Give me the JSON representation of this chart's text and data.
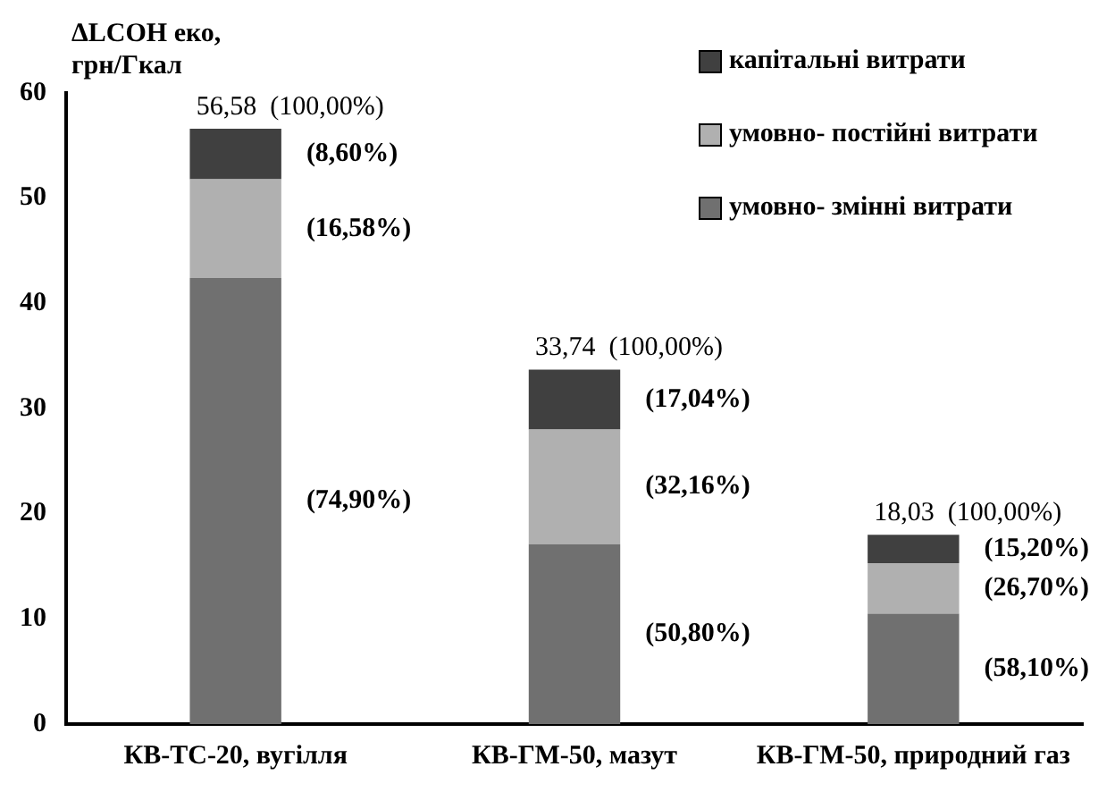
{
  "chart_data": {
    "type": "bar",
    "stacked": true,
    "ylabel": "ΔLCOH еко, грн/Гкал",
    "categories": [
      "КВ-ТС-20, вугілля",
      "КВ-ГМ-50, мазут",
      "КВ-ГМ-50, природний газ"
    ],
    "series": [
      {
        "name": "умовно- змінні витрати",
        "color": "#707070",
        "values": [
          42.4,
          17.1,
          10.5
        ]
      },
      {
        "name": "умовно- постійні витрати",
        "color": "#b0b0b0",
        "values": [
          9.4,
          10.9,
          4.8
        ]
      },
      {
        "name": "капітальні витрати",
        "color": "#404040",
        "values": [
          4.8,
          5.7,
          2.7
        ]
      }
    ],
    "totals": [
      "56,58  (100,00%)",
      "33,74  (100,00%)",
      "18,03  (100,00%)"
    ],
    "annotations": [
      "(74,90%)",
      "(16,58%)",
      "(8,60%)",
      "(50,80%)",
      "(32,16%)",
      "(17,04%)",
      "(58,10%)",
      "(26,70%)",
      "(15,20%)"
    ],
    "ylim": [
      0,
      60
    ],
    "yticks": [
      0,
      10,
      20,
      30,
      40,
      50,
      60
    ],
    "grid": false,
    "legend": "top right"
  }
}
